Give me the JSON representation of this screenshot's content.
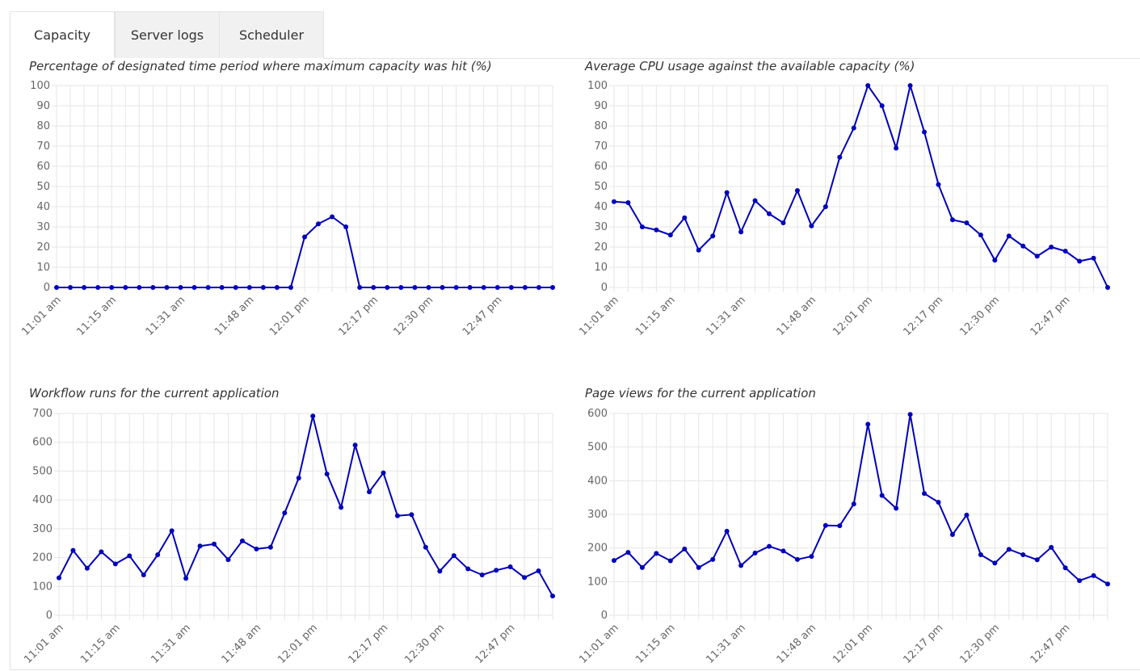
{
  "tabs": [
    {
      "label": "Capacity",
      "active": true
    },
    {
      "label": "Server logs",
      "active": false
    },
    {
      "label": "Scheduler",
      "active": false
    }
  ],
  "colors": {
    "line": "#0000bb",
    "grid": "#e6e6e6",
    "tick_text": "#666666"
  },
  "chart_data": [
    {
      "type": "line",
      "title": "Percentage of designated time period where maximum capacity was hit (%)",
      "ylim": [
        0,
        100
      ],
      "yticks": [
        0,
        10,
        20,
        30,
        40,
        50,
        60,
        70,
        80,
        90,
        100
      ],
      "xtick_labels": [
        "11:01 am",
        "11:15 am",
        "11:31 am",
        "11:48 am",
        "12:01 pm",
        "12:17 pm",
        "12:30 pm",
        "12:47 pm"
      ],
      "values": [
        0,
        0,
        0,
        0,
        0,
        0,
        0,
        0,
        0,
        0,
        0,
        0,
        0,
        0,
        0,
        0,
        0,
        0,
        25,
        31.5,
        35,
        30,
        0,
        0,
        0,
        0,
        0,
        0,
        0,
        0,
        0,
        0,
        0,
        0,
        0,
        0,
        0
      ]
    },
    {
      "type": "line",
      "title": "Average CPU usage against the available capacity (%)",
      "ylim": [
        0,
        100
      ],
      "yticks": [
        0,
        10,
        20,
        30,
        40,
        50,
        60,
        70,
        80,
        90,
        100
      ],
      "xtick_labels": [
        "11:01 am",
        "11:15 am",
        "11:31 am",
        "11:48 am",
        "12:01 pm",
        "12:17 pm",
        "12:30 pm",
        "12:47 pm"
      ],
      "values": [
        42.5,
        42,
        30,
        28.5,
        26,
        34.5,
        18.5,
        25.5,
        47,
        27.5,
        43,
        36.5,
        32,
        48,
        30.5,
        40,
        64.5,
        79,
        100,
        90,
        69,
        100,
        77,
        51,
        33.5,
        32,
        26,
        13.5,
        25.5,
        20.5,
        15.5,
        20,
        18,
        13,
        14.5,
        0
      ]
    },
    {
      "type": "line",
      "title": "Workflow runs for the current application",
      "ylim": [
        0,
        700
      ],
      "yticks": [
        0,
        100,
        200,
        300,
        400,
        500,
        600,
        700
      ],
      "xtick_labels": [
        "11:01 am",
        "11:15 am",
        "11:31 am",
        "11:48 am",
        "12:01 pm",
        "12:17 pm",
        "12:30 pm",
        "12:47 pm"
      ],
      "values": [
        130,
        225,
        163,
        220,
        178,
        206,
        140,
        210,
        293,
        128,
        240,
        247,
        193,
        258,
        230,
        236,
        355,
        476,
        691,
        490,
        374,
        590,
        428,
        494,
        345,
        349,
        236,
        153,
        207,
        161,
        140,
        156,
        168,
        131,
        154,
        67
      ]
    },
    {
      "type": "line",
      "title": "Page views for the current application",
      "ylim": [
        0,
        600
      ],
      "yticks": [
        0,
        100,
        200,
        300,
        400,
        500,
        600
      ],
      "xtick_labels": [
        "11:01 am",
        "11:15 am",
        "11:31 am",
        "11:48 am",
        "12:01 pm",
        "12:17 pm",
        "12:30 pm",
        "12:47 pm"
      ],
      "values": [
        163,
        187,
        142,
        184,
        162,
        197,
        142,
        166,
        250,
        148,
        185,
        205,
        191,
        166,
        175,
        267,
        266,
        331,
        568,
        356,
        318,
        597,
        362,
        336,
        240,
        298,
        180,
        155,
        196,
        180,
        165,
        202,
        141,
        103,
        118,
        93
      ]
    }
  ]
}
